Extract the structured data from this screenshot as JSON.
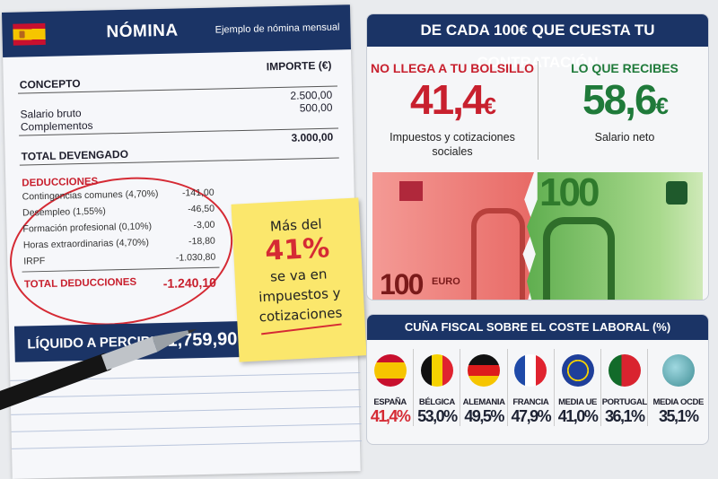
{
  "payslip": {
    "title": "NÓMINA",
    "subtitle": "Ejemplo de nómina mensual",
    "col_concept": "CONCEPTO",
    "col_amount": "IMPORTE (€)",
    "earnings": [
      {
        "label": "Salario bruto",
        "value": "2.500,00"
      },
      {
        "label": "Complementos",
        "value": "500,00"
      }
    ],
    "total_earned_label": "TOTAL DEVENGADO",
    "total_earned": "3.000,00",
    "deductions_title": "DEDUCCIONES",
    "deductions": [
      {
        "label": "Contingencias comunes (4,70%)",
        "value": "-141,00"
      },
      {
        "label": "Desempleo (1,55%)",
        "value": "-46,50"
      },
      {
        "label": "Formación profesional (0,10%)",
        "value": "-3,00"
      },
      {
        "label": "Horas extraordinarias (4,70%)",
        "value": "-18,80"
      },
      {
        "label": "IRPF",
        "value": "-1.030,80"
      }
    ],
    "total_deductions_label": "TOTAL DEDUCCIONES",
    "total_deductions": "-1.240,10",
    "net_label": "LÍQUIDO A PERCIBIR",
    "net": "1,759,90"
  },
  "sticky": {
    "line1": "Más del",
    "big": "41%",
    "line2": "se va en",
    "line3": "impuestos y",
    "line4": "cotizaciones"
  },
  "split": {
    "title": "DE CADA 100€ QUE CUESTA TU CONTRATACIÓN",
    "left": {
      "heading": "NO LLEGA A TU BOLSILLO",
      "amount": "41,4",
      "currency": "€",
      "caption": "Impuestos y cotizaciones sociales"
    },
    "right": {
      "heading": "LO QUE RECIBES",
      "amount": "58,6",
      "currency": "€",
      "caption": "Salario neto"
    },
    "bill_left_text": "100",
    "bill_left_euro": "EURO",
    "bill_right_text": "100"
  },
  "wedge": {
    "title": "CUÑA FISCAL SOBRE EL COSTE LABORAL (%)",
    "countries": [
      {
        "name": "ESPAÑA",
        "value": "41,4%",
        "flag": "es"
      },
      {
        "name": "BÉLGICA",
        "value": "53,0%",
        "flag": "be"
      },
      {
        "name": "ALEMANIA",
        "value": "49,5%",
        "flag": "de"
      },
      {
        "name": "FRANCIA",
        "value": "47,9%",
        "flag": "fr"
      },
      {
        "name": "MEDIA UE",
        "value": "41,0%",
        "flag": "eu"
      },
      {
        "name": "PORTUGAL",
        "value": "36,1%",
        "flag": "pt"
      },
      {
        "name": "MEDIA OCDE",
        "value": "35,1%",
        "flag": "globe"
      }
    ]
  },
  "colors": {
    "navy": "#1b3466",
    "red": "#d52a34",
    "green": "#1f7a3a",
    "sticky": "#fbe76c"
  }
}
